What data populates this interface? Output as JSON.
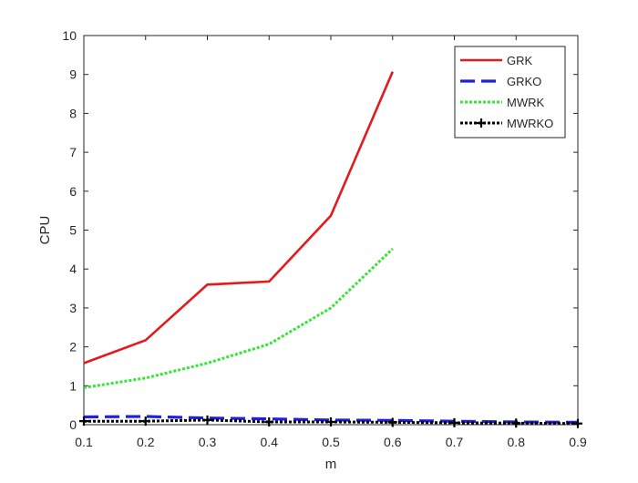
{
  "chart_data": {
    "type": "line",
    "title": "",
    "xlabel": "m",
    "ylabel": "CPU",
    "xlim": [
      0.1,
      0.9
    ],
    "ylim": [
      0,
      10
    ],
    "xticks": [
      "0.1",
      "0.2",
      "0.3",
      "0.4",
      "0.5",
      "0.6",
      "0.7",
      "0.8",
      "0.9"
    ],
    "yticks": [
      "0",
      "1",
      "2",
      "3",
      "4",
      "5",
      "6",
      "7",
      "8",
      "9",
      "10"
    ],
    "grid": false,
    "legend_position": "top-right",
    "series": [
      {
        "name": "GRK",
        "color": "#e31a1c",
        "style": "solid",
        "marker": "none",
        "x": [
          0.1,
          0.2,
          0.3,
          0.4,
          0.5,
          0.6
        ],
        "values": [
          1.58,
          2.17,
          3.6,
          3.68,
          5.37,
          9.07
        ]
      },
      {
        "name": "GRKO",
        "color": "#1f1fe0",
        "style": "dashed",
        "marker": "none",
        "x": [
          0.1,
          0.2,
          0.3,
          0.4,
          0.5,
          0.6,
          0.7,
          0.8,
          0.9
        ],
        "values": [
          0.2,
          0.21,
          0.17,
          0.15,
          0.12,
          0.11,
          0.09,
          0.07,
          0.06
        ]
      },
      {
        "name": "MWRK",
        "color": "#33e633",
        "style": "dotted",
        "marker": "none",
        "x": [
          0.1,
          0.2,
          0.3,
          0.4,
          0.5,
          0.6
        ],
        "values": [
          0.95,
          1.2,
          1.58,
          2.07,
          3.0,
          4.52
        ]
      },
      {
        "name": "MWRKO",
        "color": "#000000",
        "style": "dotted",
        "marker": "plus",
        "x": [
          0.1,
          0.2,
          0.3,
          0.4,
          0.5,
          0.6,
          0.7,
          0.8,
          0.9
        ],
        "values": [
          0.09,
          0.09,
          0.12,
          0.07,
          0.07,
          0.06,
          0.05,
          0.04,
          0.03
        ]
      }
    ]
  }
}
